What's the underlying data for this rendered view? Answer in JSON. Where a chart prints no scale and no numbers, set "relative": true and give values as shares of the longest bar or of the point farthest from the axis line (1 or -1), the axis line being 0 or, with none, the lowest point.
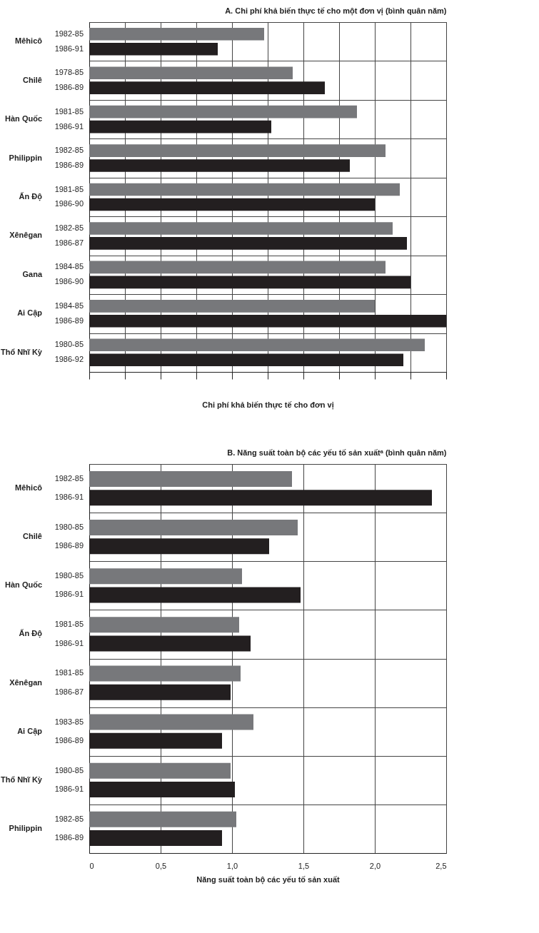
{
  "chart_data": [
    {
      "type": "bar",
      "orientation": "horizontal",
      "relative": true,
      "grid": true,
      "title": "A. Chi phí khả biến thực tế cho một đơn vị (bình quân năm)",
      "xlabel": "Chi phí khả biến thực tế cho đơn vị",
      "categories": [
        "1982-85",
        "1986-91",
        "1978-85",
        "1986-89",
        "1981-85",
        "1986-91",
        "1982-85",
        "1986-89",
        "1981-85",
        "1986-90",
        "1982-85",
        "1986-87",
        "1984-85",
        "1986-90",
        "1984-85",
        "1986-89",
        "1980-85",
        "1986-92"
      ],
      "values": [
        0.49,
        0.36,
        0.57,
        0.66,
        0.75,
        0.51,
        0.83,
        0.73,
        0.87,
        0.8,
        0.85,
        0.89,
        0.83,
        0.9,
        0.8,
        1,
        0.94,
        0.88
      ],
      "colors": [
        "#77787b",
        "#231f20",
        "#77787b",
        "#231f20",
        "#77787b",
        "#231f20",
        "#77787b",
        "#231f20",
        "#77787b",
        "#231f20",
        "#77787b",
        "#231f20",
        "#77787b",
        "#231f20",
        "#77787b",
        "#231f20",
        "#77787b",
        "#231f20"
      ],
      "annotations": [
        "Mêhicô",
        "Chilê",
        "Hàn Quốc",
        "Philippin",
        "Ấn Độ",
        "Xênêgan",
        "Gana",
        "Ai Cập",
        "Thổ Nhĩ Kỳ"
      ]
    },
    {
      "type": "bar",
      "orientation": "horizontal",
      "grid": true,
      "title": "B. Năng suất toàn bộ các yếu tố sản xuấtᵃ (bình quân năm)",
      "xlabel": "Năng suất toàn bộ các yếu tố sản xuất",
      "categories": [
        "1982-85",
        "1986-91",
        "1980-85",
        "1986-89",
        "1980-85",
        "1986-91",
        "1981-85",
        "1986-91",
        "1981-85",
        "1986-87",
        "1983-85",
        "1986-89",
        "1980-85",
        "1986-91",
        "1982-85",
        "1986-89"
      ],
      "values": [
        1.42,
        2.4,
        1.46,
        1.26,
        1.07,
        1.48,
        1.05,
        1.13,
        1.06,
        0.99,
        1.15,
        0.93,
        0.99,
        1.02,
        1.03,
        0.93
      ],
      "colors": [
        "#77787b",
        "#231f20",
        "#77787b",
        "#231f20",
        "#77787b",
        "#231f20",
        "#77787b",
        "#231f20",
        "#77787b",
        "#231f20",
        "#77787b",
        "#231f20",
        "#77787b",
        "#231f20",
        "#77787b",
        "#231f20"
      ],
      "xlim": [
        0,
        2.5
      ],
      "xticks": [
        0,
        {
          "value": 0.5,
          "label": "0,5"
        },
        {
          "value": 1.0,
          "label": "1,0"
        },
        {
          "value": 1.5,
          "label": "1,5"
        },
        {
          "value": 2.0,
          "label": "2,0"
        },
        {
          "value": 2.5,
          "label": "2,5"
        }
      ],
      "annotations": [
        "Mêhicô",
        "Chilê",
        "Hàn Quốc",
        "Ấn Độ",
        "Xênêgan",
        "Ai Cập",
        "Thổ Nhĩ Kỳ",
        "Philippin"
      ]
    }
  ]
}
